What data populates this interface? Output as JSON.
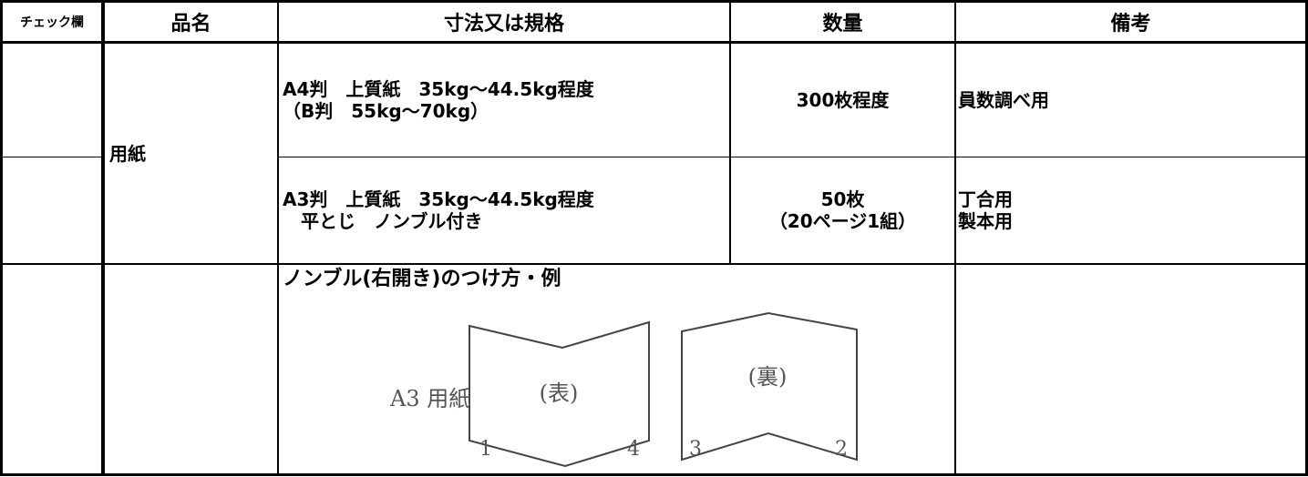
{
  "table": {
    "headers": [
      "チェック欄",
      "品名",
      "寸法又は規格",
      "数量",
      "備考"
    ],
    "rows": [
      {
        "item": "用紙",
        "spec": [
          "A4判　上質紙　35kg～44.5kg程度",
          "（B判　55kg～70kg）"
        ],
        "quantity": [
          "300枚程度"
        ],
        "note": [
          "員数調べ用"
        ]
      },
      {
        "spec": [
          "A3判　上質紙　35kg～44.5kg程度",
          "　平とじ　ノンブル付き"
        ],
        "quantity": [
          "50枚",
          "（20ページ1組）"
        ],
        "note": [
          "丁合用",
          "製本用"
        ]
      },
      {
        "spec_title": "ノンブル(右開き)のつけ方・例",
        "figure": {
          "paper_label": "A3 用紙",
          "front": "(表)",
          "back": "(裏)",
          "front_pages": [
            "1",
            "4"
          ],
          "back_pages": [
            "3",
            "2"
          ]
        }
      }
    ]
  }
}
